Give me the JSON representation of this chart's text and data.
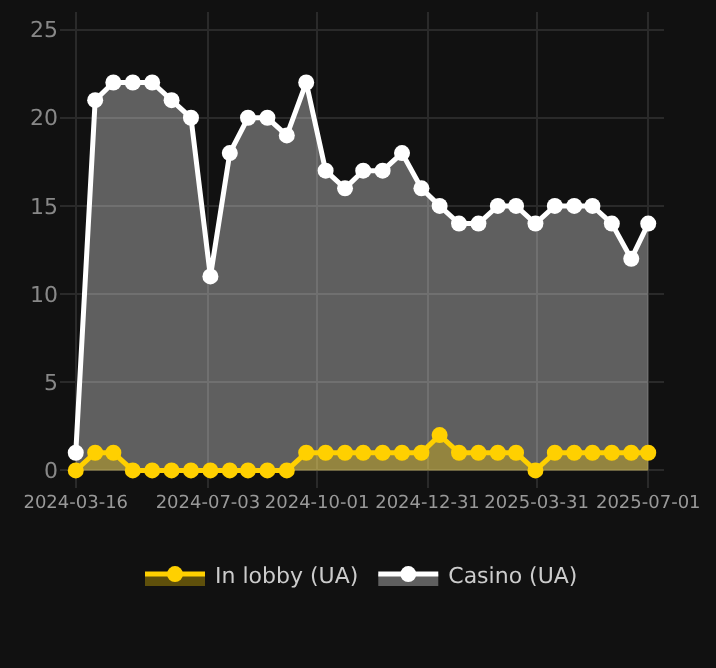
{
  "chart_data": {
    "type": "area",
    "x": [
      "2024-03-16",
      "2024-04-01",
      "2024-04-16",
      "2024-05-02",
      "2024-05-18",
      "2024-06-03",
      "2024-06-19",
      "2024-07-05",
      "2024-07-21",
      "2024-08-05",
      "2024-08-21",
      "2024-09-06",
      "2024-09-22",
      "2024-10-08",
      "2024-10-24",
      "2024-11-08",
      "2024-11-24",
      "2024-12-10",
      "2024-12-26",
      "2025-01-10",
      "2025-01-26",
      "2025-02-11",
      "2025-02-27",
      "2025-03-14",
      "2025-03-30",
      "2025-04-15",
      "2025-05-01",
      "2025-05-16",
      "2025-06-01",
      "2025-06-17",
      "2025-07-01"
    ],
    "series": [
      {
        "name": "In lobby (UA)",
        "color": "#ffd000",
        "values": [
          0,
          1,
          1,
          0,
          0,
          0,
          0,
          0,
          0,
          0,
          0,
          0,
          1,
          1,
          1,
          1,
          1,
          1,
          1,
          2,
          1,
          1,
          1,
          1,
          0,
          1,
          1,
          1,
          1,
          1,
          1
        ]
      },
      {
        "name": "Casino (UA)",
        "color": "#ffffff",
        "values": [
          1,
          21,
          22,
          22,
          22,
          21,
          20,
          11,
          18,
          20,
          20,
          19,
          22,
          17,
          16,
          17,
          17,
          18,
          16,
          15,
          14,
          14,
          15,
          15,
          14,
          15,
          15,
          15,
          14,
          12,
          14
        ]
      }
    ],
    "xlim": [
      "2024-03-03",
      "2025-07-14"
    ],
    "xticks": [
      "2024-03-16",
      "2024-07-03",
      "2024-10-01",
      "2024-12-31",
      "2025-03-31",
      "2025-07-01"
    ],
    "ylim": [
      -1,
      26
    ],
    "yticks": [
      0,
      5,
      10,
      15,
      20,
      25
    ],
    "grid": true,
    "legend": "bottom",
    "marker": "circle"
  }
}
